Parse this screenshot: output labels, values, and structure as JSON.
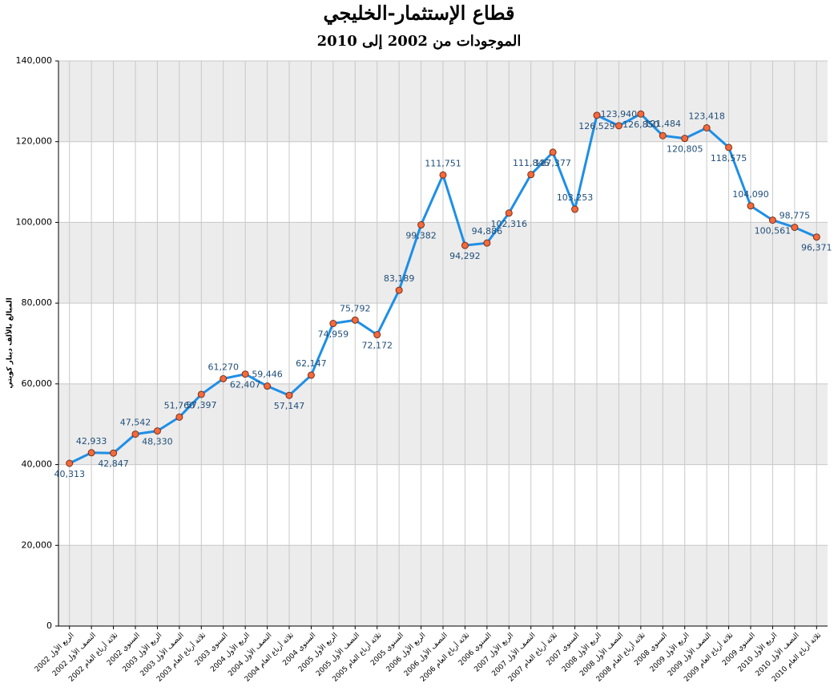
{
  "chart_data": {
    "type": "line",
    "title": "قطاع الإستثمار-الخليجي",
    "subtitle": "الموجودات من 2002 إلى 2010",
    "y_label": "المبالغ بالألف دينار كويتي",
    "categories": [
      "الربع الأول 2002",
      "النصف الأول 2002",
      "ثلاثة أرباع العام 2002",
      "السنوي 2002",
      "الربع الأول 2003",
      "النصف الأول 2003",
      "ثلاثة أرباع العام 2003",
      "السنوي 2003",
      "الربع الأول 2004",
      "النصف الأول 2004",
      "ثلاثة أرباع العام 2004",
      "السنوي 2004",
      "الربع الأول 2005",
      "النصف الأول 2005",
      "ثلاثة أرباع العام 2005",
      "السنوي 2005",
      "الربع الأول 2006",
      "النصف الأول 2006",
      "ثلاثة أرباع العام 2006",
      "السنوي 2006",
      "الربع الأول 2007",
      "النصف الأول 2007",
      "ثلاثة أرباع العام 2007",
      "السنوي 2007",
      "الربع الأول 2008",
      "النصف الأول 2008",
      "ثلاثة أرباع العام 2008",
      "السنوي 2008",
      "الربع الأول 2009",
      "النصف الأول 2009",
      "ثلاثة أرباع العام 2009",
      "السنوي 2009",
      "الربع الأول 2010",
      "النصف الأول 2010",
      "ثلاثة أرباع العام 2010"
    ],
    "values": [
      40313,
      42933,
      42847,
      47542,
      48330,
      51760,
      57397,
      61270,
      62407,
      59446,
      57147,
      62147,
      74959,
      75792,
      72172,
      83189,
      99382,
      111751,
      94292,
      94886,
      102316,
      111846,
      117377,
      103253,
      126529,
      123940,
      126850,
      121484,
      120805,
      123418,
      118575,
      104090,
      100561,
      98775,
      96371
    ],
    "value_labels": [
      "40,313",
      "42,933",
      "42,847",
      "47,542",
      "48,330",
      "51,760",
      "57,397",
      "61,270",
      "62,407",
      "59,446",
      "57,147",
      "62,147",
      "74,959",
      "75,792",
      "72,172",
      "83,189",
      "99,382",
      "111,751",
      "94,292",
      "94,886",
      "102,316",
      "111,846",
      "117,377",
      "103,253",
      "126,529",
      "123,940",
      "126,850",
      "121,484",
      "120,805",
      "123,418",
      "118,575",
      "104,090",
      "100,561",
      "98,775",
      "96,371"
    ],
    "color": "#1e8fe6",
    "marker_color": "#f26a3d",
    "ylim": [
      0,
      140000
    ],
    "yticks": [
      0,
      {
        "value": 20000,
        "label": "20,000"
      },
      {
        "value": 40000,
        "label": "40,000"
      },
      {
        "value": 60000,
        "label": "60,000"
      },
      {
        "value": 80000,
        "label": "80,000"
      },
      {
        "value": 100000,
        "label": "100,000"
      },
      {
        "value": 120000,
        "label": "120,000"
      },
      {
        "value": 140000,
        "label": "140,000"
      }
    ],
    "grid": true
  }
}
